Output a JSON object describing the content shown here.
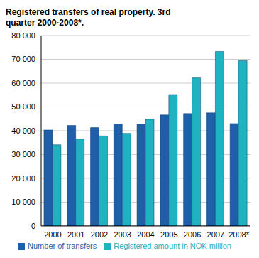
{
  "chart_data": {
    "type": "bar",
    "title": "Registered transfers of real property. 3rd quarter 2000-2008*.",
    "categories": [
      "2000",
      "2001",
      "2002",
      "2003",
      "2004",
      "2005",
      "2006",
      "2007",
      "2008*"
    ],
    "series": [
      {
        "name": "Number of transfers",
        "color": "#1f5ea8",
        "values": [
          40300,
          42200,
          41300,
          42800,
          42800,
          46600,
          47200,
          47500,
          43000
        ]
      },
      {
        "name": "Registered amount in NOK million",
        "color": "#1fb2c1",
        "values": [
          34100,
          36500,
          37800,
          38900,
          44800,
          55200,
          62200,
          73300,
          69400
        ]
      }
    ],
    "ylim": [
      0,
      80000
    ],
    "yticks": [
      0,
      {
        "value": 10000,
        "label": "10 000"
      },
      {
        "value": 20000,
        "label": "20 000"
      },
      {
        "value": 30000,
        "label": "30 000"
      },
      {
        "value": 40000,
        "label": "40 000"
      },
      {
        "value": 50000,
        "label": "50 000"
      },
      {
        "value": 60000,
        "label": "60 000"
      },
      {
        "value": 70000,
        "label": "70 000"
      },
      {
        "value": 80000,
        "label": "80 000"
      }
    ],
    "grid": true,
    "legend": "bottom"
  }
}
